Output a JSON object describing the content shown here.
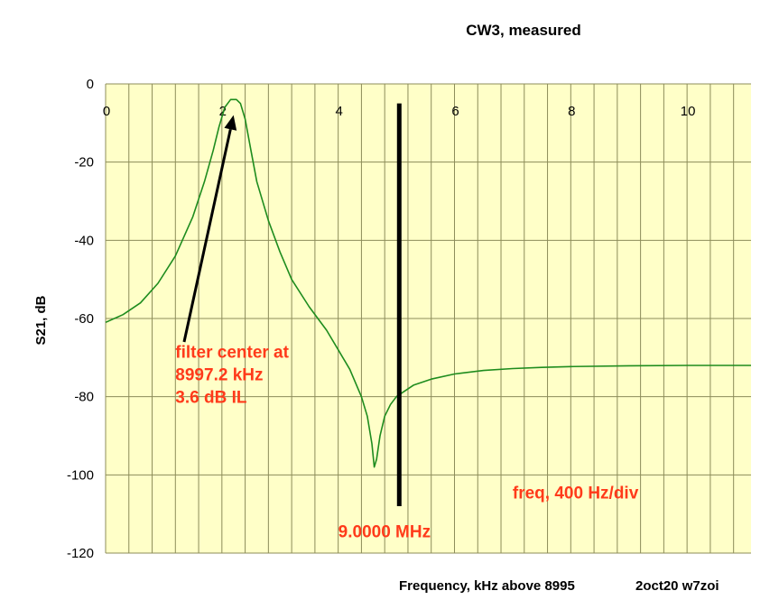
{
  "chart_data": {
    "type": "line",
    "title": "CW3, measured",
    "xlabel": "Frequency, kHz above 8995",
    "ylabel": "S21, dB",
    "footer_note": "2oct20 w7zoi",
    "xlim": [
      0,
      11.1
    ],
    "ylim": [
      -120,
      0
    ],
    "xticks": [
      "0",
      "2",
      "4",
      "6",
      "8",
      "10"
    ],
    "xtick_values": [
      0,
      2,
      4,
      6,
      8,
      10
    ],
    "yticks": [
      "0",
      "-20",
      "-40",
      "-60",
      "-80",
      "-100",
      "-120"
    ],
    "ytick_values": [
      0,
      -20,
      -40,
      -60,
      -80,
      -100,
      -120
    ],
    "grid": true,
    "x_minor_step": 0.4,
    "y_major_step": 20,
    "plot_background": "#ffffc8",
    "grid_color": "#8c8c5a",
    "series": [
      {
        "color": "#1e8c1e",
        "x": [
          0,
          0.3,
          0.6,
          0.9,
          1.2,
          1.5,
          1.7,
          1.85,
          1.95,
          2.05,
          2.15,
          2.25,
          2.32,
          2.4,
          2.5,
          2.6,
          2.8,
          3.0,
          3.2,
          3.5,
          3.8,
          4.0,
          4.2,
          4.4,
          4.5,
          4.58,
          4.62,
          4.66,
          4.72,
          4.8,
          4.9,
          5.0,
          5.1,
          5.3,
          5.6,
          6.0,
          6.5,
          7.0,
          7.5,
          8.0,
          9.0,
          10.0,
          11.1
        ],
        "y": [
          -61,
          -59,
          -56,
          -51,
          -44,
          -34,
          -25,
          -17,
          -11,
          -6,
          -4,
          -4,
          -5,
          -9,
          -17,
          -25,
          -35,
          -43,
          -50,
          -57,
          -63,
          -68,
          -73,
          -80,
          -85,
          -92,
          -98,
          -96,
          -90,
          -85,
          -82,
          -80,
          -79,
          -77,
          -75.5,
          -74.2,
          -73.3,
          -72.8,
          -72.5,
          -72.3,
          -72.1,
          -72.0,
          -72.0
        ]
      }
    ],
    "marker_line": {
      "x": 5.05,
      "y_top": -5,
      "y_bottom": -108,
      "color": "#000000"
    },
    "arrow": {
      "from": [
        1.35,
        -66
      ],
      "to": [
        2.2,
        -8
      ],
      "color": "#000000"
    },
    "annotations": [
      {
        "lines": [
          "filter center at",
          "8997.2 kHz",
          "3.6 dB IL"
        ],
        "x": 1.2,
        "y": -70,
        "color": "#ff3a1a"
      },
      {
        "lines": [
          "9.0000 MHz"
        ],
        "x": 4.0,
        "y": -116,
        "color": "#ff3a1a"
      },
      {
        "lines": [
          "freq, 400 Hz/div"
        ],
        "x": 7.0,
        "y": -106,
        "color": "#ff3a1a"
      }
    ]
  }
}
